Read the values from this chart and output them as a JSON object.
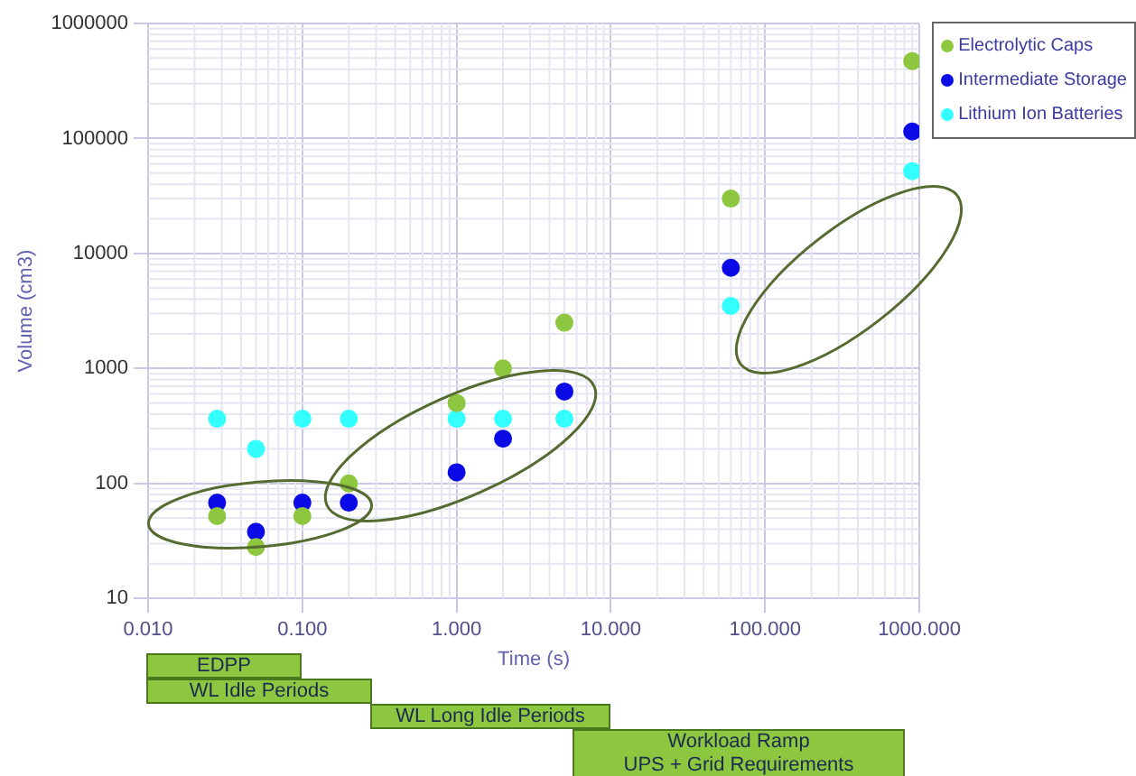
{
  "chart_data": {
    "type": "scatter",
    "xlabel": "Time (s)",
    "ylabel": "Volume (cm3)",
    "log": "xy",
    "xlim": [
      0.01,
      1000
    ],
    "xticks": [
      {
        "value": 0.01,
        "label": "0.010"
      },
      {
        "value": 0.1,
        "label": "0.100"
      },
      {
        "value": 1,
        "label": "1.000"
      },
      {
        "value": 10,
        "label": "10.000"
      },
      {
        "value": 100,
        "label": "100.000"
      },
      {
        "value": 1000,
        "label": "1000.000"
      }
    ],
    "ylim": [
      10,
      1000000
    ],
    "yticks": [
      10,
      100,
      1000,
      10000,
      100000,
      1000000
    ],
    "x": [
      0.028,
      0.05,
      0.1,
      0.2,
      1,
      2,
      5,
      60,
      900
    ],
    "series": [
      {
        "name": "Electrolytic Caps",
        "color": "#8dc63f",
        "values": [
          52,
          28,
          52,
          100,
          500,
          1000,
          2500,
          30000,
          470000
        ]
      },
      {
        "name": "Intermediate Storage",
        "color": "#0a0ae6",
        "values": [
          68,
          38,
          68,
          68,
          125,
          245,
          630,
          7500,
          115000
        ]
      },
      {
        "name": "Lithium Ion Batteries",
        "color": "#33ffff",
        "values": [
          365,
          200,
          365,
          365,
          365,
          365,
          365,
          3500,
          52000
        ]
      }
    ],
    "grid": true,
    "legend": "top right",
    "marker": "circle",
    "annotations": [
      "EDPP",
      "WL Idle Periods",
      "WL Long Idle Periods",
      "Workload Ramp",
      "UPS + Grid Requirements"
    ]
  }
}
